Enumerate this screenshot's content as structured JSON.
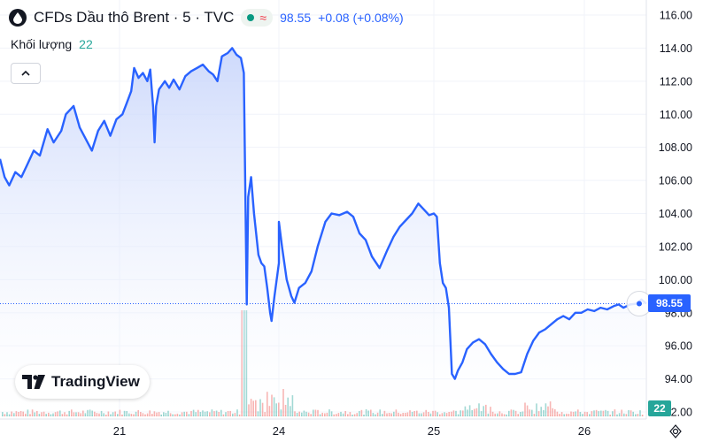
{
  "header": {
    "title": "CFDs Dầu thô Brent · 5 · TVC",
    "status_icon": "approx-sign-icon",
    "price": "98.55",
    "change": "+0.08 (+0.08%)",
    "volume_label": "Khối lượng",
    "volume_value": "22"
  },
  "brand": {
    "name": "TradingView",
    "icon": "tradingview-logo-icon"
  },
  "price_tag": "98.55",
  "volume_tag": "22",
  "colors": {
    "line": "#2962ff",
    "area_top": "#c5d3fb",
    "area_bottom": "#ffffff",
    "price_tag": "#2962ff",
    "volume_up": "#26a69a",
    "volume_down": "#ef5350",
    "volume_tag": "#26a69a",
    "status_dot": "#089981"
  },
  "chart_data": {
    "type": "area",
    "y_ticks": [
      "116.00",
      "114.00",
      "112.00",
      "110.00",
      "108.00",
      "106.00",
      "104.00",
      "102.00",
      "100.00",
      "98.00",
      "96.00",
      "94.00",
      "92.00"
    ],
    "x_ticks": [
      {
        "label": "21",
        "x": 21.0
      },
      {
        "label": "24",
        "x": 24.0
      },
      {
        "label": "25",
        "x": 25.0
      },
      {
        "label": "26",
        "x": 26.0
      }
    ],
    "ylim": [
      92.0,
      116.6
    ],
    "xlim": [
      20.22,
      26.38
    ],
    "last_price": 98.55,
    "grid": true,
    "series": [
      {
        "values": [
          [
            20.22,
            107.3
          ],
          [
            20.25,
            106.2
          ],
          [
            20.28,
            105.7
          ],
          [
            20.32,
            106.5
          ],
          [
            20.36,
            106.2
          ],
          [
            20.4,
            107.0
          ],
          [
            20.44,
            107.8
          ],
          [
            20.48,
            107.5
          ],
          [
            20.53,
            109.1
          ],
          [
            20.57,
            108.3
          ],
          [
            20.62,
            109.0
          ],
          [
            20.65,
            110.0
          ],
          [
            20.7,
            110.5
          ],
          [
            20.74,
            109.2
          ],
          [
            20.78,
            108.5
          ],
          [
            20.82,
            107.8
          ],
          [
            20.86,
            109.0
          ],
          [
            20.9,
            109.6
          ],
          [
            20.94,
            108.7
          ],
          [
            20.98,
            109.7
          ],
          [
            21.02,
            110.0
          ],
          [
            21.05,
            110.7
          ],
          [
            21.08,
            111.4
          ],
          [
            21.1,
            112.8
          ],
          [
            21.13,
            112.2
          ],
          [
            21.16,
            112.5
          ],
          [
            21.19,
            112.0
          ],
          [
            21.21,
            112.7
          ],
          [
            21.23,
            110.4
          ],
          [
            21.24,
            108.3
          ],
          [
            21.25,
            110.5
          ],
          [
            21.27,
            111.5
          ],
          [
            21.31,
            112.0
          ],
          [
            21.34,
            111.6
          ],
          [
            21.37,
            112.1
          ],
          [
            21.41,
            111.5
          ],
          [
            21.45,
            112.3
          ],
          [
            21.49,
            112.6
          ],
          [
            21.53,
            112.8
          ],
          [
            21.57,
            113.0
          ],
          [
            21.61,
            112.6
          ],
          [
            21.64,
            112.4
          ],
          [
            21.67,
            112.0
          ],
          [
            21.7,
            113.5
          ],
          [
            21.74,
            113.7
          ],
          [
            21.77,
            114.0
          ],
          [
            21.8,
            113.6
          ],
          [
            21.83,
            113.4
          ],
          [
            21.85,
            112.5
          ],
          [
            21.87,
            98.5
          ],
          [
            21.88,
            105.0
          ],
          [
            21.9,
            106.2
          ],
          [
            21.92,
            104.0
          ],
          [
            21.95,
            101.5
          ],
          [
            21.97,
            101.0
          ],
          [
            21.99,
            100.8
          ],
          [
            22.01,
            99.5
          ],
          [
            22.03,
            98.0
          ],
          [
            22.04,
            97.5
          ],
          [
            22.06,
            99.0
          ],
          [
            22.09,
            101.0
          ],
          [
            24.0,
            103.5
          ],
          [
            24.02,
            102.0
          ],
          [
            24.05,
            100.0
          ],
          [
            24.08,
            99.0
          ],
          [
            24.1,
            98.6
          ],
          [
            24.13,
            99.5
          ],
          [
            24.17,
            99.8
          ],
          [
            24.21,
            100.5
          ],
          [
            24.25,
            102.0
          ],
          [
            24.3,
            103.5
          ],
          [
            24.34,
            104.0
          ],
          [
            24.39,
            103.9
          ],
          [
            24.44,
            104.1
          ],
          [
            24.48,
            103.8
          ],
          [
            24.52,
            102.8
          ],
          [
            24.56,
            102.4
          ],
          [
            24.6,
            101.4
          ],
          [
            24.65,
            100.7
          ],
          [
            24.7,
            101.8
          ],
          [
            24.74,
            102.6
          ],
          [
            24.78,
            103.2
          ],
          [
            24.82,
            103.6
          ],
          [
            24.86,
            104.0
          ],
          [
            24.9,
            104.6
          ],
          [
            24.94,
            104.2
          ],
          [
            24.97,
            103.9
          ],
          [
            25.0,
            104.0
          ],
          [
            25.02,
            103.8
          ],
          [
            25.04,
            101.0
          ],
          [
            25.06,
            99.8
          ],
          [
            25.08,
            99.5
          ],
          [
            25.1,
            98.3
          ],
          [
            25.12,
            94.3
          ],
          [
            25.14,
            94.0
          ],
          [
            25.16,
            94.5
          ],
          [
            25.19,
            95.0
          ],
          [
            25.22,
            95.8
          ],
          [
            25.26,
            96.2
          ],
          [
            25.3,
            96.4
          ],
          [
            25.34,
            96.1
          ],
          [
            25.38,
            95.5
          ],
          [
            25.42,
            95.0
          ],
          [
            25.46,
            94.6
          ],
          [
            25.5,
            94.3
          ],
          [
            25.54,
            94.3
          ],
          [
            25.58,
            94.4
          ],
          [
            25.62,
            95.5
          ],
          [
            25.66,
            96.3
          ],
          [
            25.7,
            96.8
          ],
          [
            25.74,
            97.0
          ],
          [
            25.78,
            97.3
          ],
          [
            25.82,
            97.6
          ],
          [
            25.86,
            97.8
          ],
          [
            25.9,
            97.6
          ],
          [
            25.94,
            98.0
          ],
          [
            25.98,
            98.0
          ],
          [
            26.02,
            98.2
          ],
          [
            26.06,
            98.1
          ],
          [
            26.1,
            98.3
          ],
          [
            26.14,
            98.2
          ],
          [
            26.18,
            98.4
          ],
          [
            26.21,
            98.5
          ],
          [
            26.24,
            98.3
          ],
          [
            26.28,
            98.5
          ],
          [
            26.32,
            98.55
          ],
          [
            26.35,
            98.8
          ],
          [
            26.38,
            98.55
          ]
        ]
      }
    ]
  }
}
